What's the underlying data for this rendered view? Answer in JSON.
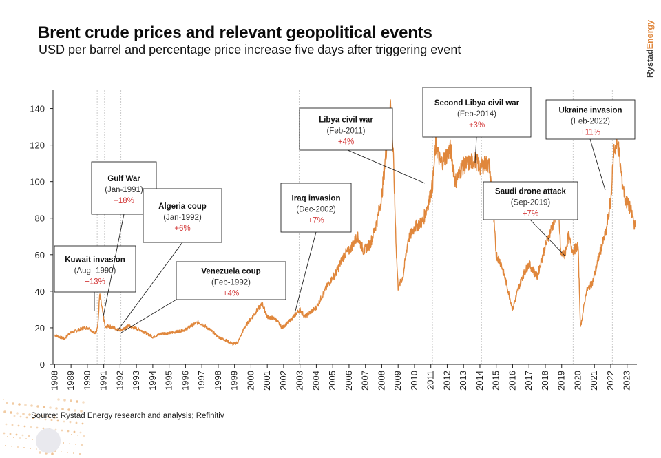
{
  "brand": "RystadEnergy",
  "colors": {
    "line": "#e0873c",
    "pct": "#d33a3a",
    "event_line": "#c9c9c9",
    "dots": "#e6a25a"
  },
  "source": "Source: Rystad Energy research and analysis; Refinitiv",
  "chart_data": {
    "type": "line",
    "title": "Brent crude prices and relevant geopolitical events",
    "subtitle": "USD per barrel and percentage price increase five days after triggering event",
    "xlabel": "",
    "ylabel": "",
    "xlim": [
      1987.9,
      2023.6
    ],
    "ylim": [
      0,
      150
    ],
    "y_ticks": [
      0,
      20,
      40,
      60,
      80,
      100,
      120,
      140
    ],
    "x_ticks": [
      "1988",
      "1989",
      "1990",
      "1991",
      "1992",
      "1993",
      "1994",
      "1995",
      "1996",
      "1997",
      "1998",
      "1999",
      "2000",
      "2001",
      "2002",
      "2003",
      "2004",
      "2005",
      "2006",
      "2007",
      "2008",
      "2009",
      "2010",
      "2011",
      "2012",
      "2013",
      "2014",
      "2015",
      "2016",
      "2017",
      "2018",
      "2019",
      "2020",
      "2021",
      "2022",
      "2023"
    ],
    "series": [
      {
        "name": "Brent crude (USD per barrel)",
        "x": [
          1988.0,
          1988.3,
          1988.6,
          1988.9,
          1989.2,
          1989.5,
          1989.8,
          1990.1,
          1990.4,
          1990.55,
          1990.65,
          1990.75,
          1990.85,
          1991.0,
          1991.1,
          1991.3,
          1991.6,
          1991.9,
          1992.2,
          1992.5,
          1992.8,
          1993.2,
          1993.6,
          1994.0,
          1994.3,
          1994.6,
          1995.0,
          1995.5,
          1996.0,
          1996.5,
          1996.8,
          1997.0,
          1997.5,
          1998.0,
          1998.5,
          1998.9,
          1999.2,
          1999.6,
          2000.0,
          2000.4,
          2000.7,
          2001.0,
          2001.5,
          2001.9,
          2002.3,
          2002.7,
          2003.0,
          2003.3,
          2003.7,
          2004.0,
          2004.5,
          2004.8,
          2005.2,
          2005.7,
          2006.0,
          2006.5,
          2006.9,
          2007.3,
          2007.7,
          2008.0,
          2008.3,
          2008.52,
          2008.7,
          2008.9,
          2009.0,
          2009.3,
          2009.6,
          2010.0,
          2010.5,
          2010.9,
          2011.1,
          2011.3,
          2011.6,
          2012.0,
          2012.2,
          2012.5,
          2012.9,
          2013.3,
          2013.7,
          2014.0,
          2014.4,
          2014.6,
          2014.8,
          2015.0,
          2015.3,
          2015.6,
          2016.0,
          2016.3,
          2016.6,
          2017.0,
          2017.5,
          2018.0,
          2018.4,
          2018.8,
          2018.95,
          2019.2,
          2019.4,
          2019.7,
          2020.0,
          2020.15,
          2020.3,
          2020.5,
          2020.9,
          2021.3,
          2021.7,
          2022.0,
          2022.2,
          2022.45,
          2022.7,
          2022.9,
          2023.2,
          2023.5
        ],
        "values": [
          16,
          15,
          14,
          17,
          18,
          19,
          20,
          20,
          17,
          18,
          22,
          38,
          33,
          25,
          20,
          21,
          20,
          19,
          19,
          21,
          20,
          19,
          17,
          15,
          16,
          17,
          17,
          18,
          19,
          22,
          23,
          22,
          19,
          15,
          13,
          11,
          12,
          20,
          25,
          30,
          33,
          26,
          25,
          20,
          23,
          27,
          30,
          26,
          29,
          31,
          40,
          45,
          50,
          60,
          62,
          70,
          62,
          66,
          78,
          92,
          120,
          145,
          115,
          60,
          42,
          48,
          68,
          75,
          78,
          90,
          98,
          120,
          110,
          115,
          118,
          100,
          108,
          110,
          112,
          108,
          110,
          108,
          85,
          60,
          55,
          45,
          30,
          40,
          48,
          55,
          48,
          65,
          75,
          85,
          60,
          60,
          70,
          62,
          65,
          20,
          28,
          40,
          45,
          60,
          72,
          90,
          118,
          120,
          100,
          90,
          85,
          75
        ]
      }
    ],
    "events": [
      {
        "title": "Kuwait invasion",
        "date": "(Aug -1990)",
        "pct": "+13%",
        "year": 1990.6
      },
      {
        "title": "Gulf War",
        "date": "(Jan-1991)",
        "pct": "+18%",
        "year": 1991.05
      },
      {
        "title": "Algeria coup",
        "date": "(Jan-1992)",
        "pct": "+6%",
        "year": 1992.05
      },
      {
        "title": "Venezuela coup",
        "date": "(Feb-1992)",
        "pct": "+4%",
        "year": 1992.1
      },
      {
        "title": "Iraq invasion",
        "date": "(Dec-2002)",
        "pct": "+7%",
        "year": 2002.95
      },
      {
        "title": "Libya civil war",
        "date": "(Feb-2011)",
        "pct": "+4%",
        "year": 2011.1
      },
      {
        "title": "Second Libya civil war",
        "date": "(Feb-2014)",
        "pct": "+3%",
        "year": 2014.1
      },
      {
        "title": "Saudi drone attack",
        "date": "(Sep-2019)",
        "pct": "+7%",
        "year": 2019.7
      },
      {
        "title": "Ukraine invasion",
        "date": "(Feb-2022)",
        "pct": "+11%",
        "year": 2022.1
      }
    ]
  }
}
